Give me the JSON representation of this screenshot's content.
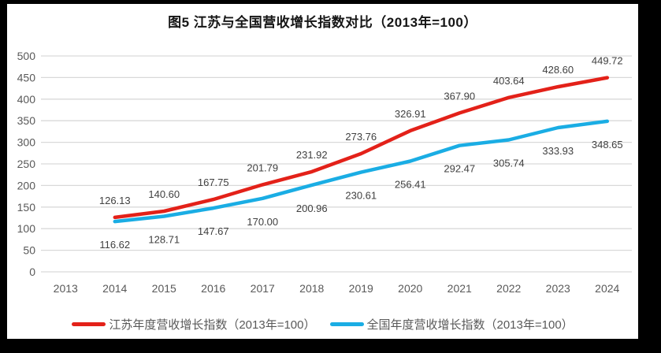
{
  "chart_data": {
    "type": "line",
    "title": "图5  江苏与全国营收增长指数对比（2013年=100）",
    "categories": [
      "2013",
      "2014",
      "2015",
      "2016",
      "2017",
      "2018",
      "2019",
      "2020",
      "2021",
      "2022",
      "2023",
      "2024"
    ],
    "series": [
      {
        "name": "江苏年度营收增长指数（2013年=100）",
        "color": "#e32119",
        "label_side": "above",
        "values": [
          null,
          126.13,
          140.6,
          167.75,
          201.79,
          231.92,
          273.76,
          326.91,
          367.9,
          403.64,
          428.6,
          449.72
        ]
      },
      {
        "name": "全国年度营收增长指数（2013年=100）",
        "color": "#1aade4",
        "label_side": "below",
        "values": [
          null,
          116.62,
          128.71,
          147.67,
          170.0,
          200.96,
          230.61,
          256.41,
          292.47,
          305.74,
          333.93,
          348.65
        ]
      }
    ],
    "xlabel": "",
    "ylabel": "",
    "ylim": [
      0,
      500
    ],
    "ytick_step": 50,
    "yticks": [
      "0",
      "50",
      "100",
      "150",
      "200",
      "250",
      "300",
      "350",
      "400",
      "450",
      "500"
    ],
    "grid": true,
    "legend_position": "bottom",
    "grid_color": "#d9d9d9",
    "axis_label_color": "#595959",
    "data_label_color": "#404040",
    "panel_background": "#ffffff",
    "frame_color": "#000000"
  }
}
